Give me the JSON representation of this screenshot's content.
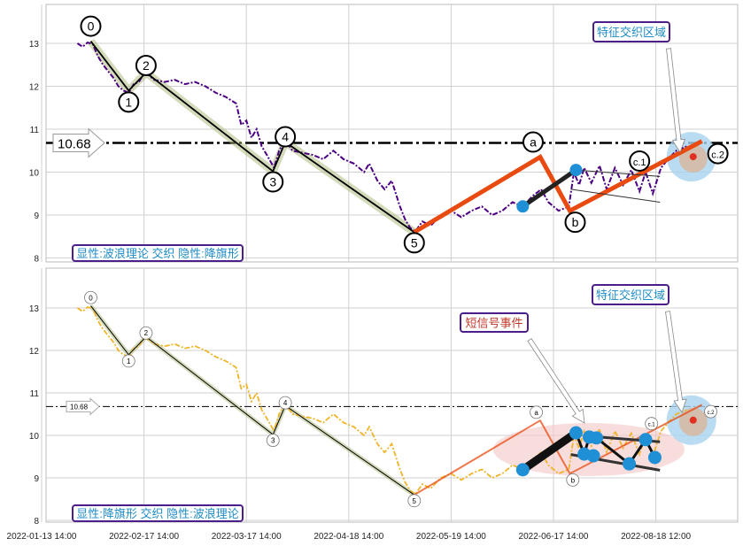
{
  "chart_data": {
    "type": "line",
    "title": "",
    "xlabel": "",
    "ylabel": "",
    "x_tick_labels": [
      "2022-01-13 14:00",
      "2022-02-17 14:00",
      "2022-03-17 14:00",
      "2022-04-18 14:00",
      "2022-05-19 14:00",
      "2022-06-17 14:00",
      "2022-08-18 12:00"
    ],
    "xlim": [
      -0.05,
      6.8
    ],
    "ylim": [
      7.85,
      13.9
    ],
    "y_ticks": [
      8,
      9,
      10,
      11,
      12,
      13
    ],
    "grid": true,
    "price": [
      [
        0.35,
        13.0
      ],
      [
        0.4,
        12.92
      ],
      [
        0.45,
        13.02
      ],
      [
        0.5,
        12.98
      ],
      [
        0.55,
        12.7
      ],
      [
        0.6,
        12.5
      ],
      [
        0.65,
        12.35
      ],
      [
        0.7,
        12.2
      ],
      [
        0.75,
        12.0
      ],
      [
        0.8,
        11.9
      ],
      [
        0.85,
        11.85
      ],
      [
        0.9,
        12.05
      ],
      [
        0.95,
        12.1
      ],
      [
        1.0,
        12.3
      ],
      [
        1.05,
        12.25
      ],
      [
        1.1,
        12.15
      ],
      [
        1.2,
        12.1
      ],
      [
        1.3,
        12.15
      ],
      [
        1.4,
        12.05
      ],
      [
        1.5,
        12.1
      ],
      [
        1.6,
        12.0
      ],
      [
        1.7,
        11.85
      ],
      [
        1.8,
        11.75
      ],
      [
        1.9,
        11.6
      ],
      [
        1.95,
        11.1
      ],
      [
        2.0,
        11.2
      ],
      [
        2.05,
        10.8
      ],
      [
        2.1,
        11.0
      ],
      [
        2.15,
        10.6
      ],
      [
        2.2,
        10.4
      ],
      [
        2.27,
        10.1
      ],
      [
        2.32,
        10.5
      ],
      [
        2.38,
        10.75
      ],
      [
        2.45,
        10.5
      ],
      [
        2.55,
        10.45
      ],
      [
        2.65,
        10.4
      ],
      [
        2.75,
        10.3
      ],
      [
        2.85,
        10.5
      ],
      [
        2.95,
        10.3
      ],
      [
        3.05,
        10.2
      ],
      [
        3.15,
        10.0
      ],
      [
        3.2,
        10.2
      ],
      [
        3.28,
        9.8
      ],
      [
        3.35,
        9.6
      ],
      [
        3.42,
        9.8
      ],
      [
        3.5,
        9.2
      ],
      [
        3.55,
        8.9
      ],
      [
        3.6,
        8.7
      ],
      [
        3.65,
        8.62
      ],
      [
        3.72,
        8.85
      ],
      [
        3.8,
        8.75
      ],
      [
        3.9,
        9.0
      ],
      [
        4.0,
        9.1
      ],
      [
        4.1,
        8.95
      ],
      [
        4.2,
        9.1
      ],
      [
        4.3,
        9.2
      ],
      [
        4.4,
        9.0
      ],
      [
        4.5,
        9.1
      ],
      [
        4.6,
        9.3
      ],
      [
        4.7,
        9.2
      ],
      [
        4.8,
        9.45
      ],
      [
        4.88,
        9.6
      ],
      [
        4.95,
        9.3
      ],
      [
        5.05,
        9.1
      ],
      [
        5.15,
        9.2
      ],
      [
        5.2,
        10.0
      ],
      [
        5.25,
        9.7
      ],
      [
        5.3,
        10.1
      ],
      [
        5.37,
        9.75
      ],
      [
        5.45,
        10.15
      ],
      [
        5.52,
        9.6
      ],
      [
        5.6,
        10.1
      ],
      [
        5.68,
        9.7
      ],
      [
        5.76,
        10.05
      ],
      [
        5.84,
        9.55
      ],
      [
        5.9,
        10.0
      ],
      [
        5.97,
        9.5
      ],
      [
        6.05,
        10.1
      ],
      [
        6.12,
        10.3
      ],
      [
        6.2,
        10.5
      ],
      [
        6.3,
        10.6
      ]
    ],
    "reference_line": {
      "value": 10.68,
      "label": "10.68"
    },
    "wave_points": [
      {
        "label": "0",
        "x": 0.48,
        "y": 13.05
      },
      {
        "label": "1",
        "x": 0.85,
        "y": 11.9
      },
      {
        "label": "2",
        "x": 1.02,
        "y": 12.32
      },
      {
        "label": "3",
        "x": 2.26,
        "y": 10.02
      },
      {
        "label": "4",
        "x": 2.38,
        "y": 10.7
      },
      {
        "label": "5",
        "x": 3.64,
        "y": 8.6
      }
    ],
    "abc_points": [
      {
        "label": "a",
        "x": 4.87,
        "y": 10.35
      },
      {
        "label": "b",
        "x": 5.16,
        "y": 9.1
      },
      {
        "label": "c.1",
        "x": 6.1,
        "y": 10.3
      },
      {
        "label": "c.2",
        "x": 6.45,
        "y": 10.72
      }
    ],
    "flag_top": {
      "pole": [
        [
          4.7,
          9.2
        ],
        [
          5.22,
          10.05
        ]
      ],
      "upper": [
        [
          5.22,
          10.05
        ],
        [
          6.04,
          9.9
        ]
      ],
      "lower": [
        [
          5.17,
          9.6
        ],
        [
          6.04,
          9.3
        ]
      ]
    },
    "flag_bottom_network": [
      [
        4.7,
        9.19
      ],
      [
        5.22,
        10.06
      ],
      [
        5.3,
        9.56
      ],
      [
        5.35,
        9.96
      ],
      [
        5.42,
        9.94
      ],
      [
        5.39,
        9.52
      ],
      [
        5.74,
        9.33
      ],
      [
        5.9,
        9.9
      ],
      [
        5.99,
        9.48
      ]
    ],
    "focus_zone": {
      "x": 6.33,
      "y": 10.4
    },
    "panels": [
      {
        "caption": "显性:波浪理论 交织 隐性:降旗形",
        "zone_label": "特征交织区域",
        "series_color": "#4b0082"
      },
      {
        "caption": "显性:降旗形 交织 隐性:波浪理论",
        "zone_label": "特征交织区域",
        "event_label": "短信号事件",
        "series_color": "#f0b429"
      }
    ]
  },
  "colors": {
    "accent_text": "#1f8bc6",
    "box_border": "#4b1e8a",
    "event_text": "#c0392b",
    "wave_orange": "#e84a10",
    "dot_blue": "#1f8fd6"
  }
}
